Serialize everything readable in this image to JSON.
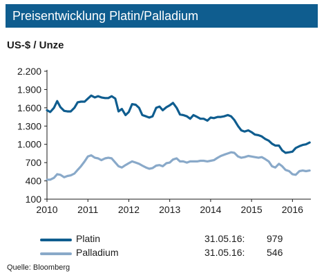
{
  "header": {
    "title": "Preisentwicklung Platin/Palladium"
  },
  "chart_data": {
    "type": "line",
    "ylabel": "US-$ / Unze",
    "ylim": [
      100,
      2200
    ],
    "yticks": [
      "2.200",
      "1.900",
      "1.600",
      "1.300",
      "1.000",
      "700",
      "400",
      "100"
    ],
    "ytick_values": [
      2200,
      1900,
      1600,
      1300,
      1000,
      700,
      400,
      100
    ],
    "xlim": [
      2010,
      2016.45
    ],
    "xticks": [
      "2010",
      "2011",
      "2012",
      "2013",
      "2014",
      "2015",
      "2016"
    ],
    "xtick_values": [
      2010,
      2011,
      2012,
      2013,
      2014,
      2015,
      2016
    ],
    "grid": false,
    "x": [
      2010.0,
      2010.08,
      2010.17,
      2010.25,
      2010.33,
      2010.42,
      2010.5,
      2010.58,
      2010.67,
      2010.75,
      2010.83,
      2010.92,
      2011.0,
      2011.08,
      2011.17,
      2011.25,
      2011.33,
      2011.42,
      2011.5,
      2011.58,
      2011.67,
      2011.75,
      2011.83,
      2011.92,
      2012.0,
      2012.08,
      2012.17,
      2012.25,
      2012.33,
      2012.42,
      2012.5,
      2012.58,
      2012.67,
      2012.75,
      2012.83,
      2012.92,
      2013.0,
      2013.08,
      2013.17,
      2013.25,
      2013.33,
      2013.42,
      2013.5,
      2013.58,
      2013.67,
      2013.75,
      2013.83,
      2013.92,
      2014.0,
      2014.08,
      2014.17,
      2014.25,
      2014.33,
      2014.42,
      2014.5,
      2014.58,
      2014.67,
      2014.75,
      2014.83,
      2014.92,
      2015.0,
      2015.08,
      2015.17,
      2015.25,
      2015.33,
      2015.42,
      2015.5,
      2015.58,
      2015.67,
      2015.75,
      2015.83,
      2015.92,
      2016.0,
      2016.08,
      2016.17,
      2016.25,
      2016.33,
      2016.42
    ],
    "series": [
      {
        "name": "Platin",
        "color": "#0f5d8f",
        "values": [
          1560,
          1530,
          1600,
          1710,
          1610,
          1550,
          1540,
          1540,
          1600,
          1690,
          1700,
          1700,
          1750,
          1800,
          1770,
          1790,
          1770,
          1760,
          1760,
          1790,
          1750,
          1540,
          1580,
          1480,
          1530,
          1660,
          1650,
          1600,
          1480,
          1460,
          1440,
          1460,
          1600,
          1620,
          1560,
          1610,
          1640,
          1680,
          1600,
          1490,
          1480,
          1460,
          1420,
          1480,
          1450,
          1420,
          1420,
          1390,
          1440,
          1430,
          1450,
          1450,
          1460,
          1480,
          1460,
          1400,
          1300,
          1230,
          1210,
          1230,
          1200,
          1160,
          1150,
          1130,
          1090,
          1060,
          1010,
          980,
          980,
          900,
          860,
          870,
          880,
          940,
          970,
          990,
          1000,
          1030
        ]
      },
      {
        "name": "Palladium",
        "color": "#89a9c9",
        "values": [
          420,
          420,
          450,
          510,
          500,
          460,
          480,
          490,
          520,
          580,
          640,
          720,
          800,
          820,
          780,
          770,
          740,
          770,
          780,
          770,
          700,
          640,
          620,
          660,
          690,
          720,
          700,
          680,
          650,
          620,
          600,
          610,
          650,
          660,
          640,
          690,
          700,
          750,
          770,
          720,
          720,
          700,
          720,
          720,
          720,
          730,
          730,
          720,
          730,
          740,
          780,
          810,
          830,
          850,
          870,
          860,
          800,
          780,
          790,
          810,
          800,
          790,
          780,
          790,
          760,
          720,
          640,
          620,
          680,
          640,
          580,
          560,
          510,
          500,
          560,
          570,
          560,
          570
        ]
      }
    ],
    "legend": [
      {
        "name": "Platin",
        "date": "31.05.16:",
        "value": "979"
      },
      {
        "name": "Palladium",
        "date": "31.05.16:",
        "value": "546"
      }
    ]
  },
  "footer": {
    "source": "Quelle: Bloomberg"
  }
}
